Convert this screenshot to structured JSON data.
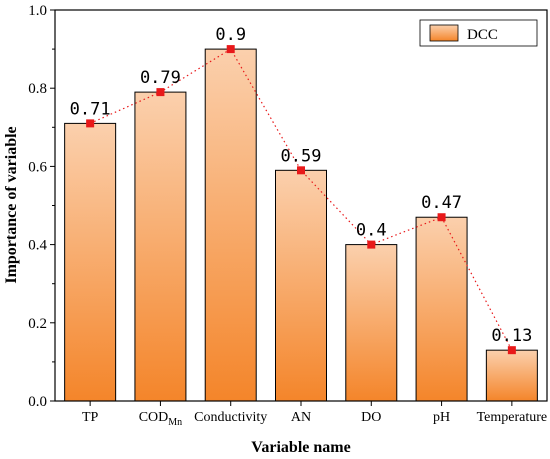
{
  "chart_data": {
    "type": "bar",
    "categories": [
      "TP",
      "COD",
      "Conductivity",
      "AN",
      "DO",
      "pH",
      "Temperature"
    ],
    "category_subscripts": [
      "",
      "Mn",
      "",
      "",
      "",
      "",
      ""
    ],
    "values": [
      0.71,
      0.79,
      0.9,
      0.59,
      0.4,
      0.47,
      0.13
    ],
    "value_labels": [
      "0.71",
      "0.79",
      "0.9",
      "0.59",
      "0.4",
      "0.47",
      "0.13"
    ],
    "series": [
      {
        "name": "DCC",
        "values": [
          0.71,
          0.79,
          0.9,
          0.59,
          0.4,
          0.47,
          0.13
        ]
      }
    ],
    "xlabel": "Variable name",
    "ylabel": "Importance of variable",
    "ylim": [
      0,
      1.0
    ],
    "yticks": [
      "0.0",
      "0.2",
      "0.4",
      "0.6",
      "0.8",
      "1.0"
    ],
    "legend": "top-right",
    "grid": false,
    "overlay_line": {
      "style": "dotted",
      "marker": "square"
    },
    "colors": {
      "bar_top": "#fbd0ad",
      "bar_bottom": "#f4852a",
      "bar_edge": "#000000",
      "line": "#e8191a",
      "marker": "#e8191a"
    }
  }
}
